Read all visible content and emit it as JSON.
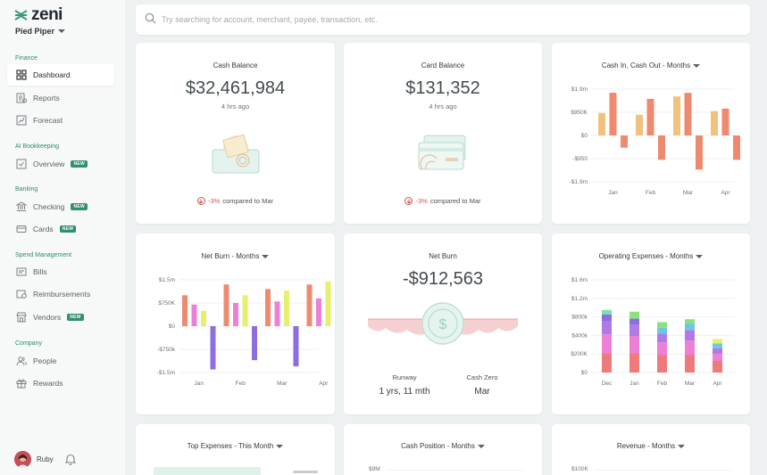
{
  "app": {
    "logo": "zeni",
    "company": "Pied Piper"
  },
  "sidebar": {
    "sections": [
      {
        "label": "Finance",
        "items": [
          {
            "label": "Dashboard",
            "icon": "grid-icon",
            "active": true
          },
          {
            "label": "Reports",
            "icon": "reports-icon"
          },
          {
            "label": "Forecast",
            "icon": "forecast-icon"
          }
        ]
      },
      {
        "label": "AI Bookkeeping",
        "items": [
          {
            "label": "Overview",
            "icon": "check-square-icon",
            "badge": "NEW"
          }
        ]
      },
      {
        "label": "Banking",
        "items": [
          {
            "label": "Checking",
            "icon": "bank-icon",
            "badge": "NEW"
          },
          {
            "label": "Cards",
            "icon": "card-icon",
            "badge": "NEW"
          }
        ]
      },
      {
        "label": "Spend Management",
        "items": [
          {
            "label": "Bills",
            "icon": "bills-icon"
          },
          {
            "label": "Reimbursements",
            "icon": "reimbursements-icon"
          },
          {
            "label": "Vendors",
            "icon": "vendors-icon",
            "badge": "NEW"
          }
        ]
      },
      {
        "label": "Company",
        "items": [
          {
            "label": "People",
            "icon": "people-icon"
          },
          {
            "label": "Rewards",
            "icon": "gift-icon"
          }
        ]
      }
    ],
    "user": "Ruby"
  },
  "search": {
    "placeholder": "Try searching for account, merchant, payee, transaction, etc."
  },
  "cards": {
    "cash_balance": {
      "title": "Cash Balance",
      "value": "$32,461,984",
      "updated": "4 hrs ago",
      "change": "-3%",
      "compare": "compared to Mar"
    },
    "card_balance": {
      "title": "Card Balance",
      "value": "$131,352",
      "updated": "4 hrs ago",
      "change": "-3%",
      "compare": "compared to Mar"
    },
    "cash_in_out": {
      "title": "Cash In, Cash Out - Months"
    },
    "net_burn_months": {
      "title": "Net Burn - Months"
    },
    "net_burn": {
      "title": "Net Burn",
      "value": "-$912,563",
      "runway_label": "Runway",
      "runway_value": "1 yrs, 11 mth",
      "cash_zero_label": "Cash Zero",
      "cash_zero_value": "Mar"
    },
    "opex": {
      "title": "Operating Expenses - Months"
    },
    "top_expenses": {
      "title": "Top Expenses - This Month"
    },
    "cash_position": {
      "title": "Cash Position - Months",
      "first_tick": "$9M"
    },
    "revenue": {
      "title": "Revenue - Months",
      "first_tick": "$100K"
    }
  },
  "colors": {
    "accent": "#2f8f6e",
    "negative": "#d9534f",
    "orange": "#ee8a70",
    "yellow": "#f1c27d",
    "purple": "#8c6ee0",
    "pink": "#ee7fd6",
    "lime": "#e6ef6e"
  },
  "chart_data": [
    {
      "type": "bar",
      "title": "Cash In, Cash Out - Months",
      "ticks": [
        "$1.9m",
        "$950K",
        "$0",
        "-$950",
        "-$1.9m"
      ],
      "ylim": [
        -1.9,
        1.9
      ],
      "month_labels": [
        "Jan",
        "Feb",
        "Mar",
        "Apr"
      ],
      "bars": [
        {
          "v": 0.92,
          "c": "#f1c27d"
        },
        {
          "v": 1.75,
          "c": "#ee8a70"
        },
        {
          "v": -0.5,
          "c": "#ee8a70"
        },
        {
          "v": 0.85,
          "c": "#f1c27d"
        },
        {
          "v": 1.5,
          "c": "#ee8a70"
        },
        {
          "v": -1.0,
          "c": "#ee8a70"
        },
        {
          "v": 1.6,
          "c": "#f1c27d"
        },
        {
          "v": 1.75,
          "c": "#ee8a70"
        },
        {
          "v": -1.4,
          "c": "#ee8a70"
        },
        {
          "v": 1.0,
          "c": "#f1c27d"
        },
        {
          "v": 1.1,
          "c": "#ee8a70"
        },
        {
          "v": -1.0,
          "c": "#ee8a70"
        }
      ]
    },
    {
      "type": "bar",
      "title": "Net Burn - Months",
      "ticks": [
        "$1.5m",
        "$750K",
        "$0",
        "-$750k",
        "-$1.5m"
      ],
      "ylim": [
        -1.5,
        1.5
      ],
      "month_labels": [
        "Jan",
        "Feb",
        "Mar",
        "Apr"
      ],
      "bars": [
        {
          "v": 1.0,
          "c": "#ee8a70"
        },
        {
          "v": 0.7,
          "c": "#ee7fd6"
        },
        {
          "v": 0.5,
          "c": "#e6ef6e"
        },
        {
          "v": -1.4,
          "c": "#8c6ee0"
        },
        {
          "v": 1.35,
          "c": "#ee8a70"
        },
        {
          "v": 0.75,
          "c": "#ee7fd6"
        },
        {
          "v": 1.0,
          "c": "#e6ef6e"
        },
        {
          "v": -1.1,
          "c": "#8c6ee0"
        },
        {
          "v": 1.2,
          "c": "#ee8a70"
        },
        {
          "v": 0.8,
          "c": "#ee7fd6"
        },
        {
          "v": 1.15,
          "c": "#e6ef6e"
        },
        {
          "v": -1.3,
          "c": "#8c6ee0"
        },
        {
          "v": 1.35,
          "c": "#ee8a70"
        },
        {
          "v": 0.9,
          "c": "#ee7fd6"
        },
        {
          "v": 1.45,
          "c": "#e6ef6e"
        },
        {
          "v": 0.15,
          "c": "#8c6ee0"
        }
      ]
    },
    {
      "type": "bar",
      "title": "Operating Expenses - Months",
      "stacked": true,
      "ticks": [
        "$1.6m",
        "$1.2m",
        "$800k",
        "$400k",
        "$200K",
        "$0"
      ],
      "month_labels": [
        "Dec",
        "Jan",
        "Feb",
        "Mar",
        "Apr"
      ],
      "stacks": [
        [
          {
            "v": 0.33,
            "c": "#ee7a7a"
          },
          {
            "v": 0.33,
            "c": "#ee7fd6"
          },
          {
            "v": 0.22,
            "c": "#b07ae6"
          },
          {
            "v": 0.12,
            "c": "#8c6ee0"
          },
          {
            "v": 0.08,
            "c": "#7ee0b0"
          }
        ],
        [
          {
            "v": 0.33,
            "c": "#ee7a7a"
          },
          {
            "v": 0.3,
            "c": "#ee7fd6"
          },
          {
            "v": 0.2,
            "c": "#b07ae6"
          },
          {
            "v": 0.1,
            "c": "#8c6ee0"
          },
          {
            "v": 0.12,
            "c": "#8ce07e"
          }
        ],
        [
          {
            "v": 0.3,
            "c": "#ee7a7a"
          },
          {
            "v": 0.22,
            "c": "#ee7fd6"
          },
          {
            "v": 0.15,
            "c": "#b07ae6"
          },
          {
            "v": 0.1,
            "c": "#6ec8e0"
          },
          {
            "v": 0.1,
            "c": "#8ce07e"
          }
        ],
        [
          {
            "v": 0.3,
            "c": "#ee7a7a"
          },
          {
            "v": 0.25,
            "c": "#ee7fd6"
          },
          {
            "v": 0.18,
            "c": "#b07ae6"
          },
          {
            "v": 0.12,
            "c": "#6ec8e0"
          },
          {
            "v": 0.07,
            "c": "#8ce07e"
          }
        ],
        [
          {
            "v": 0.2,
            "c": "#ee7a7a"
          },
          {
            "v": 0.12,
            "c": "#ee7fd6"
          },
          {
            "v": 0.1,
            "c": "#b07ae6"
          },
          {
            "v": 0.08,
            "c": "#6ec8e0"
          },
          {
            "v": 0.08,
            "c": "#e6ef6e"
          }
        ]
      ]
    }
  ]
}
